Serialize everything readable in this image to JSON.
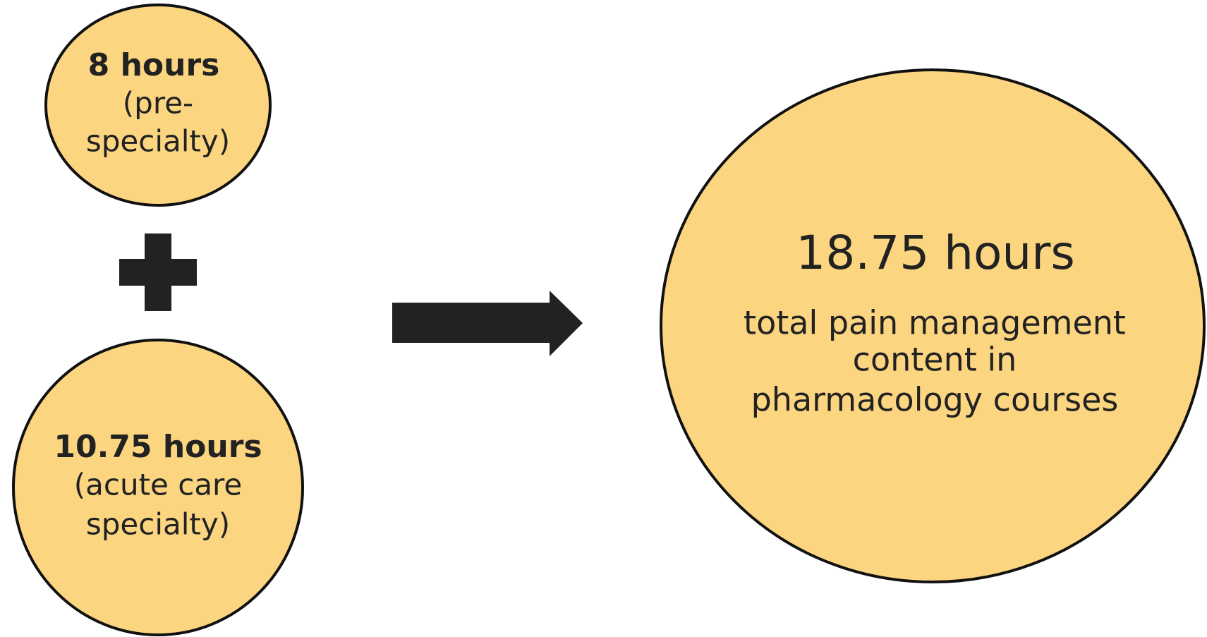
{
  "nodes": [
    {
      "title": "8 hours",
      "lines": [
        "(pre-",
        "specialty)"
      ]
    },
    {
      "title": "10.75 hours",
      "lines": [
        "(acute care",
        "specialty)"
      ]
    },
    {
      "title": "18.75 hours",
      "lines": [
        "total pain management",
        "content in",
        "pharmacology courses"
      ]
    }
  ]
}
